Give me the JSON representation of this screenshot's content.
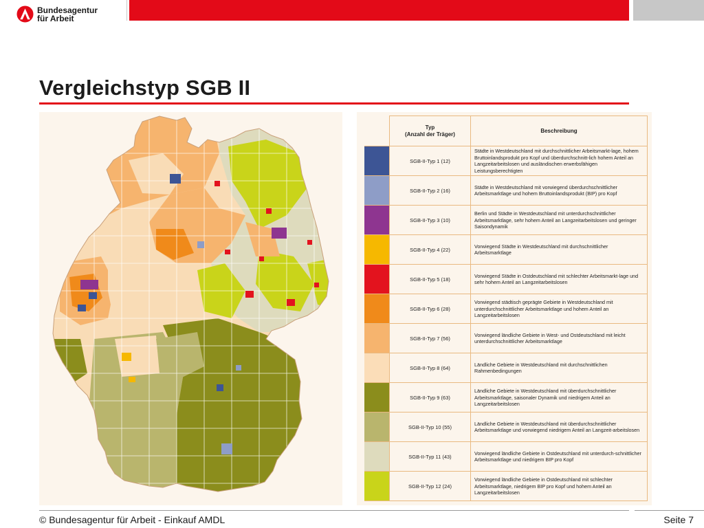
{
  "header": {
    "org_line1": "Bundesagentur",
    "org_line2": "für Arbeit"
  },
  "title": "Vergleichstyp SGB II",
  "legend": {
    "header_typ_line1": "Typ",
    "header_typ_line2": "(Anzahl der Träger)",
    "header_desc": "Beschreibung",
    "rows": [
      {
        "typ": "SGB-II-Typ 1 (12)",
        "color": "#3d5595",
        "desc": "Städte in Westdeutschland mit durchschnittlicher Arbeitsmarkt-lage, hohem Bruttoinlandsprodukt pro Kopf und überdurchschnitt-lich hohem Anteil an Langzeitarbeitslosen und ausländischen erwerbsfähigen Leistungsberechtigten"
      },
      {
        "typ": "SGB-II-Typ 2 (16)",
        "color": "#8e9dc7",
        "desc": "Städte in Westdeutschland mit vorwiegend überdurchschnittlicher Arbeitsmarktlage und hohem Bruttoinlandsprodukt (BIP) pro Kopf"
      },
      {
        "typ": "SGB-II-Typ 3 (10)",
        "color": "#8e3590",
        "desc": "Berlin und Städte in Westdeutschland mit unterdurchschnittlicher Arbeitsmarktlage, sehr hohem Anteil an Langzeitarbeitslosen und geringer Saisondynamik"
      },
      {
        "typ": "SGB-II-Typ 4 (22)",
        "color": "#f6b800",
        "desc": "Vorwiegend Städte in Westdeutschland mit durchschnittlicher Arbeitsmarktlage"
      },
      {
        "typ": "SGB-II-Typ 5 (18)",
        "color": "#e3131e",
        "desc": "Vorwiegend Städte in Ostdeutschland mit schlechter Arbeitsmarkt-lage und sehr hohem Anteil an Langzeitarbeitslosen"
      },
      {
        "typ": "SGB-II-Typ 6 (28)",
        "color": "#f08a1a",
        "desc": "Vorwiegend städtisch geprägte Gebiete in Westdeutschland mit unterdurchschnittlicher Arbeitsmarktlage und hohem Anteil an Langzeitarbeitslosen"
      },
      {
        "typ": "SGB-II-Typ 7 (56)",
        "color": "#f6b46e",
        "desc": "Vorwiegend ländliche Gebiete in West- und Ostdeutschland mit leicht unterdurchschnittlicher Arbeitsmarktlage"
      },
      {
        "typ": "SGB-II-Typ 8 (64)",
        "color": "#fbddb8",
        "desc": "Ländliche Gebiete in Westdeutschland mit durchschnittlichen Rahmenbedingungen"
      },
      {
        "typ": "SGB-II-Typ 9 (63)",
        "color": "#8b8d1c",
        "desc": "Ländliche Gebiete in Westdeutschland mit überdurchschnittlicher Arbeitsmarktlage, saisonaler Dynamik und niedrigem Anteil an Langzeitarbeitslosen"
      },
      {
        "typ": "SGB-II-Typ 10 (55)",
        "color": "#b9b56d",
        "desc": "Ländliche Gebiete in Westdeutschland mit überdurchschnittlicher Arbeitsmarktlage und vorwiegend niedrigem Anteil an Langzeit-arbeitslosen"
      },
      {
        "typ": "SGB-II-Typ 11 (43)",
        "color": "#dedbbd",
        "desc": "Vorwiegend ländliche Gebiete in Ostdeutschland mit unterdurch-schnittlicher Arbeitsmarktlage und niedrigem BIP pro Kopf"
      },
      {
        "typ": "SGB-II-Typ 12 (24)",
        "color": "#c9d41a",
        "desc": "Vorwiegend ländliche Gebiete in Ostdeutschland mit schlechter Arbeitsmarktlage, niedrigem BIP pro Kopf und hohem Anteil an Langzeitarbeitslosen"
      }
    ]
  },
  "footer": {
    "copyright": "© Bundesagentur für Arbeit - Einkauf AMDL",
    "page": "Seite 7"
  },
  "colors": {
    "brand_red": "#e30a18",
    "panel_bg": "#fcf5ec",
    "table_border": "#e9b980"
  }
}
